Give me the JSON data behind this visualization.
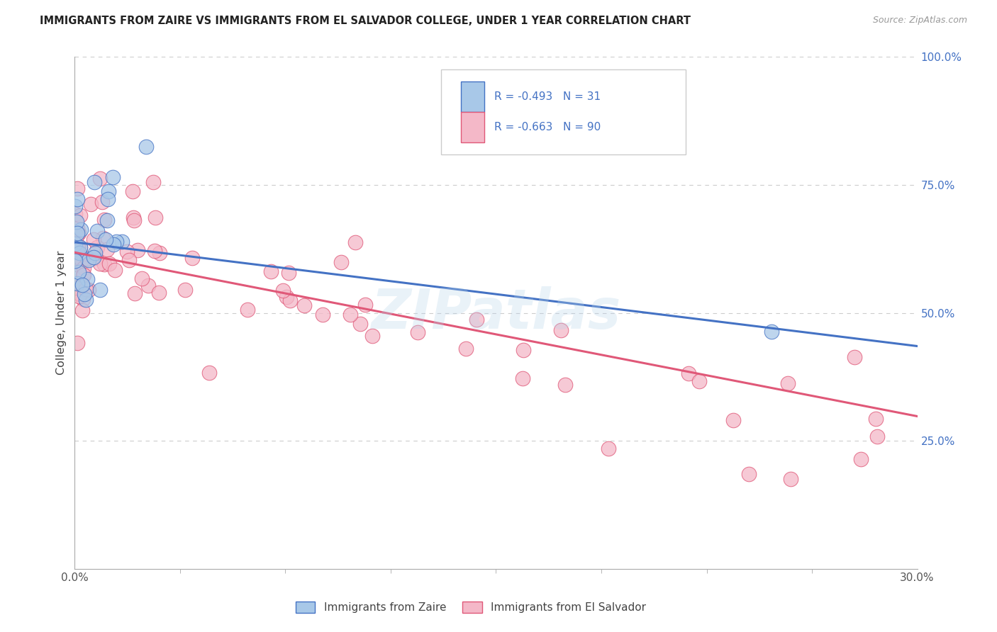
{
  "title": "IMMIGRANTS FROM ZAIRE VS IMMIGRANTS FROM EL SALVADOR COLLEGE, UNDER 1 YEAR CORRELATION CHART",
  "source": "Source: ZipAtlas.com",
  "ylabel": "College, Under 1 year",
  "ylabel_right_ticks": [
    "100.0%",
    "75.0%",
    "50.0%",
    "25.0%"
  ],
  "ylabel_right_vals": [
    1.0,
    0.75,
    0.5,
    0.25
  ],
  "xmin": 0.0,
  "xmax": 0.3,
  "ymin": 0.0,
  "ymax": 1.0,
  "legend_zaire_R": "-0.493",
  "legend_zaire_N": "31",
  "legend_salvador_R": "-0.663",
  "legend_salvador_N": "90",
  "legend_label_zaire": "Immigrants from Zaire",
  "legend_label_salvador": "Immigrants from El Salvador",
  "zaire_color": "#a8c8e8",
  "salvador_color": "#f4b8c8",
  "trendline_zaire_color": "#4472c4",
  "trendline_salvador_color": "#e05878",
  "legend_text_color": "#4472c4",
  "watermark": "ZIPatlas",
  "background_color": "#ffffff",
  "grid_color": "#cccccc",
  "zaire_trend_x0": 0.0,
  "zaire_trend_y0": 0.638,
  "zaire_trend_x1": 0.3,
  "zaire_trend_y1": 0.435,
  "salvador_trend_x0": 0.0,
  "salvador_trend_y0": 0.618,
  "salvador_trend_x1": 0.3,
  "salvador_trend_y1": 0.298
}
